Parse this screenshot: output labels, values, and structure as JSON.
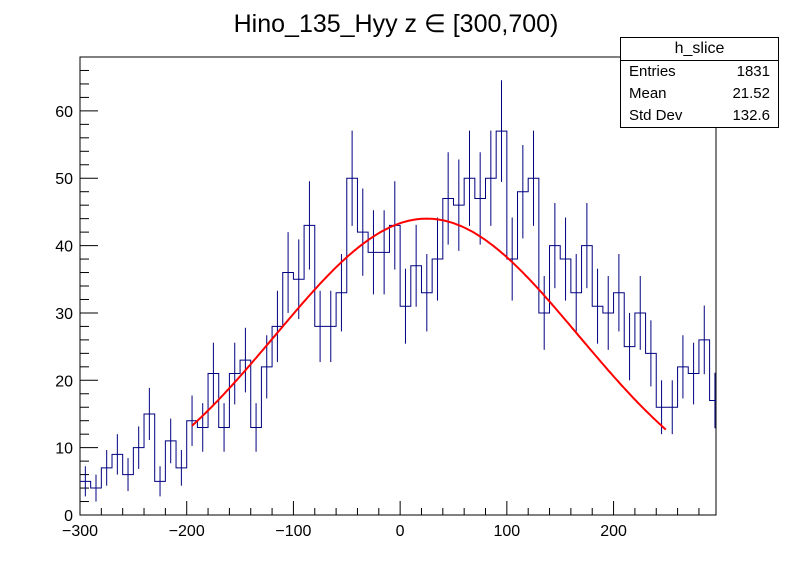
{
  "chart_data": {
    "type": "histogram",
    "title": "Hino_135_Hyy z  ∈ [300,700)",
    "xlabel": "",
    "ylabel": "",
    "xlim": [
      -300,
      296
    ],
    "ylim": [
      0,
      68
    ],
    "bin_width": 10,
    "bin_low_edges": [
      -300,
      -290,
      -280,
      -270,
      -260,
      -250,
      -240,
      -230,
      -220,
      -210,
      -200,
      -190,
      -180,
      -170,
      -160,
      -150,
      -140,
      -130,
      -120,
      -110,
      -100,
      -90,
      -80,
      -70,
      -60,
      -50,
      -40,
      -30,
      -20,
      -10,
      0,
      10,
      20,
      30,
      40,
      50,
      60,
      70,
      80,
      90,
      100,
      110,
      120,
      130,
      140,
      150,
      160,
      170,
      180,
      190,
      200,
      210,
      220,
      230,
      240,
      250,
      260,
      270,
      280,
      290
    ],
    "counts": [
      5,
      4,
      7,
      9,
      6,
      10,
      15,
      5,
      11,
      7,
      14,
      13,
      21,
      13,
      21,
      23,
      13,
      22,
      28,
      36,
      35,
      43,
      28,
      28,
      33,
      50,
      42,
      39,
      39,
      43,
      31,
      37,
      33,
      38,
      47,
      46,
      50,
      47,
      50,
      57,
      38,
      48,
      50,
      30,
      40,
      38,
      33,
      40,
      31,
      30,
      33,
      25,
      30,
      24,
      16,
      16,
      22,
      21,
      26,
      17
    ],
    "x_ticks": [
      -300,
      -200,
      -100,
      0,
      100,
      200
    ],
    "x_tick_labels": [
      "−300",
      "−200",
      "−100",
      "0",
      "100",
      "200"
    ],
    "y_ticks": [
      0,
      10,
      20,
      30,
      40,
      50,
      60
    ],
    "y_tick_labels": [
      "0",
      "10",
      "20",
      "30",
      "40",
      "50",
      "60"
    ],
    "fit": {
      "type": "gaussian",
      "amplitude": 44,
      "mean": 25,
      "sigma": 142,
      "x_from": -195,
      "x_to": 250
    },
    "colors": {
      "histogram": "#000080",
      "error_bars": "#000080",
      "fit": "#ff0000",
      "axes": "#000000"
    }
  },
  "stats_box": {
    "name": "h_slice",
    "entries_label": "Entries",
    "entries_value": "1831",
    "mean_label": "Mean",
    "mean_value": "21.52",
    "std_label": "Std Dev",
    "std_value": "132.6"
  }
}
